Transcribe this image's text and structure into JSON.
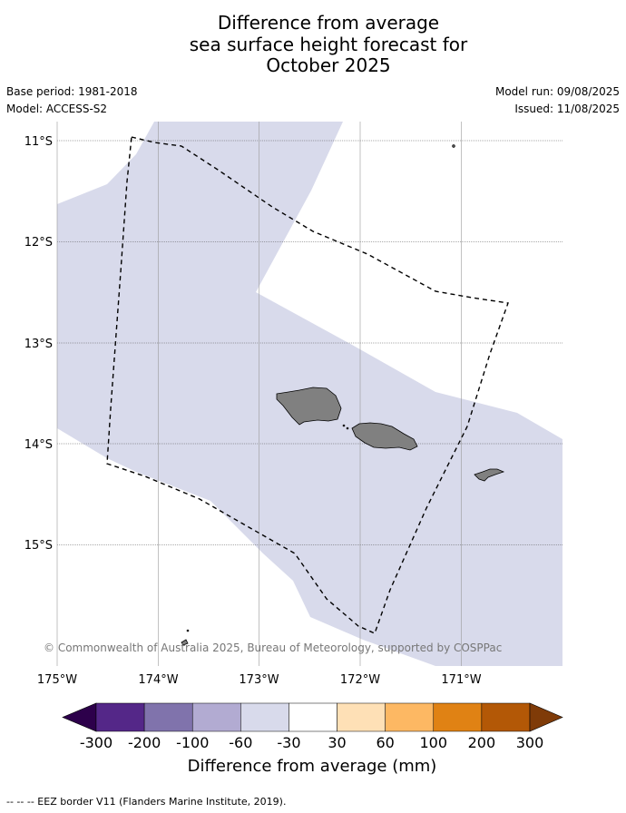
{
  "title_lines": [
    "Difference from average",
    "sea surface height forecast for",
    "October 2025"
  ],
  "meta_left": [
    "Base period: 1981-2018",
    "Model: ACCESS-S2"
  ],
  "meta_right": [
    "Model run: 09/08/2025",
    "Issued: 11/08/2025"
  ],
  "lat_ticks": [
    "11°S",
    "12°S",
    "13°S",
    "14°S",
    "15°S"
  ],
  "lon_ticks": [
    "175°W",
    "174°W",
    "173°W",
    "172°W",
    "171°W"
  ],
  "copyright": "© Commonwealth of Australia 2025, Bureau of Meteorology, supported by COSPPac",
  "colorbar": {
    "title": "Difference from average (mm)",
    "tick_labels": [
      "-300",
      "-200",
      "-100",
      "-60",
      "-30",
      "30",
      "60",
      "100",
      "200",
      "300"
    ],
    "colors": {
      "under": "#2d004b",
      "bins": [
        "#542788",
        "#8073ac",
        "#b2abd2",
        "#d8daeb",
        "#ffffff",
        "#fee0b6",
        "#fdb863",
        "#e08214",
        "#b35806"
      ],
      "over": "#7f3b08"
    }
  },
  "map_colors": {
    "anomaly_fill": "#d8daeb",
    "land": "#808080",
    "eez_line": "#000000"
  },
  "footer": "--  --  -- EEZ border V11 (Flanders Marine Institute, 2019)."
}
